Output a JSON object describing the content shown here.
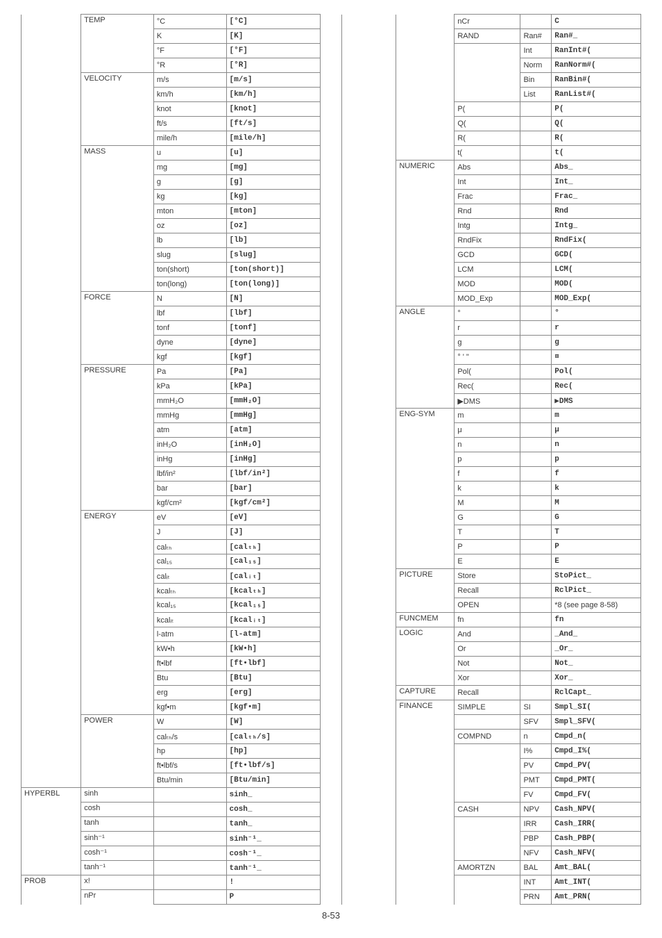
{
  "page_number": "8-53",
  "left_table": {
    "cols": [
      "level1",
      "level2",
      "level3",
      "level4",
      "command"
    ],
    "col_widths": [
      "70px",
      "85px",
      "85px",
      "0px",
      "110px"
    ],
    "rows": [
      {
        "l1": "",
        "l2": "TEMP",
        "l3": "°C",
        "cmd": "[°C]"
      },
      {
        "l1": "",
        "l2": "",
        "l3": "K",
        "cmd": "[K]"
      },
      {
        "l1": "",
        "l2": "",
        "l3": "°F",
        "cmd": "[°F]"
      },
      {
        "l1": "",
        "l2": "",
        "l3": "°R",
        "cmd": "[°R]"
      },
      {
        "l1": "",
        "l2": "VELOCITY",
        "l3": "m/s",
        "cmd": "[m/s]"
      },
      {
        "l1": "",
        "l2": "",
        "l3": "km/h",
        "cmd": "[km/h]"
      },
      {
        "l1": "",
        "l2": "",
        "l3": "knot",
        "cmd": "[knot]"
      },
      {
        "l1": "",
        "l2": "",
        "l3": "ft/s",
        "cmd": "[ft/s]"
      },
      {
        "l1": "",
        "l2": "",
        "l3": "mile/h",
        "cmd": "[mile/h]"
      },
      {
        "l1": "",
        "l2": "MASS",
        "l3": "u",
        "cmd": "[u]"
      },
      {
        "l1": "",
        "l2": "",
        "l3": "mg",
        "cmd": "[mg]"
      },
      {
        "l1": "",
        "l2": "",
        "l3": "g",
        "cmd": "[g]"
      },
      {
        "l1": "",
        "l2": "",
        "l3": "kg",
        "cmd": "[kg]"
      },
      {
        "l1": "",
        "l2": "",
        "l3": "mton",
        "cmd": "[mton]"
      },
      {
        "l1": "",
        "l2": "",
        "l3": "oz",
        "cmd": "[oz]"
      },
      {
        "l1": "",
        "l2": "",
        "l3": "lb",
        "cmd": "[lb]"
      },
      {
        "l1": "",
        "l2": "",
        "l3": "slug",
        "cmd": "[slug]"
      },
      {
        "l1": "",
        "l2": "",
        "l3": "ton(short)",
        "cmd": "[ton(short)]"
      },
      {
        "l1": "",
        "l2": "",
        "l3": "ton(long)",
        "cmd": "[ton(long)]"
      },
      {
        "l1": "",
        "l2": "FORCE",
        "l3": "N",
        "cmd": "[N]"
      },
      {
        "l1": "",
        "l2": "",
        "l3": "lbf",
        "cmd": "[lbf]"
      },
      {
        "l1": "",
        "l2": "",
        "l3": "tonf",
        "cmd": "[tonf]"
      },
      {
        "l1": "",
        "l2": "",
        "l3": "dyne",
        "cmd": "[dyne]"
      },
      {
        "l1": "",
        "l2": "",
        "l3": "kgf",
        "cmd": "[kgf]"
      },
      {
        "l1": "",
        "l2": "PRESSURE",
        "l3": "Pa",
        "cmd": "[Pa]"
      },
      {
        "l1": "",
        "l2": "",
        "l3": "kPa",
        "cmd": "[kPa]"
      },
      {
        "l1": "",
        "l2": "",
        "l3": "mmH₂O",
        "cmd": "[mmH₂O]"
      },
      {
        "l1": "",
        "l2": "",
        "l3": "mmHg",
        "cmd": "[mmHg]"
      },
      {
        "l1": "",
        "l2": "",
        "l3": "atm",
        "cmd": "[atm]"
      },
      {
        "l1": "",
        "l2": "",
        "l3": "inH₂O",
        "cmd": "[inH₂O]"
      },
      {
        "l1": "",
        "l2": "",
        "l3": "inHg",
        "cmd": "[inHg]"
      },
      {
        "l1": "",
        "l2": "",
        "l3": "lbf/in²",
        "cmd": "[lbf/in²]"
      },
      {
        "l1": "",
        "l2": "",
        "l3": "bar",
        "cmd": "[bar]"
      },
      {
        "l1": "",
        "l2": "",
        "l3": "kgf/cm²",
        "cmd": "[kgf/cm²]"
      },
      {
        "l1": "",
        "l2": "ENERGY",
        "l3": "eV",
        "cmd": "[eV]"
      },
      {
        "l1": "",
        "l2": "",
        "l3": "J",
        "cmd": "[J]"
      },
      {
        "l1": "",
        "l2": "",
        "l3": "calₜₕ",
        "cmd": "[calₜₕ]"
      },
      {
        "l1": "",
        "l2": "",
        "l3": "cal₁₅",
        "cmd": "[cal₁₅]"
      },
      {
        "l1": "",
        "l2": "",
        "l3": "calᵢₜ",
        "cmd": "[calᵢₜ]"
      },
      {
        "l1": "",
        "l2": "",
        "l3": "kcalₜₕ",
        "cmd": "[kcalₜₕ]"
      },
      {
        "l1": "",
        "l2": "",
        "l3": "kcal₁₅",
        "cmd": "[kcal₁₅]"
      },
      {
        "l1": "",
        "l2": "",
        "l3": "kcalᵢₜ",
        "cmd": "[kcalᵢₜ]"
      },
      {
        "l1": "",
        "l2": "",
        "l3": "l-atm",
        "cmd": "[l-atm]"
      },
      {
        "l1": "",
        "l2": "",
        "l3": "kW•h",
        "cmd": "[kW•h]"
      },
      {
        "l1": "",
        "l2": "",
        "l3": "ft•lbf",
        "cmd": "[ft•lbf]"
      },
      {
        "l1": "",
        "l2": "",
        "l3": "Btu",
        "cmd": "[Btu]"
      },
      {
        "l1": "",
        "l2": "",
        "l3": "erg",
        "cmd": "[erg]"
      },
      {
        "l1": "",
        "l2": "",
        "l3": "kgf•m",
        "cmd": "[kgf•m]"
      },
      {
        "l1": "",
        "l2": "POWER",
        "l3": "W",
        "cmd": "[W]"
      },
      {
        "l1": "",
        "l2": "",
        "l3": "calₜₕ/s",
        "cmd": "[calₜₕ/s]"
      },
      {
        "l1": "",
        "l2": "",
        "l3": "hp",
        "cmd": "[hp]"
      },
      {
        "l1": "",
        "l2": "",
        "l3": "ft•lbf/s",
        "cmd": "[ft•lbf/s]"
      },
      {
        "l1": "",
        "l2": "",
        "l3": "Btu/min",
        "cmd": "[Btu/min]"
      },
      {
        "l1": "HYPERBL",
        "l2": "sinh",
        "l3": "",
        "cmd": "sinh_"
      },
      {
        "l1": "",
        "l2": "cosh",
        "l3": "",
        "cmd": "cosh_"
      },
      {
        "l1": "",
        "l2": "tanh",
        "l3": "",
        "cmd": "tanh_"
      },
      {
        "l1": "",
        "l2": "sinh⁻¹",
        "l3": "",
        "cmd": "sinh⁻¹_"
      },
      {
        "l1": "",
        "l2": "cosh⁻¹",
        "l3": "",
        "cmd": "cosh⁻¹_"
      },
      {
        "l1": "",
        "l2": "tanh⁻¹",
        "l3": "",
        "cmd": "tanh⁻¹_"
      },
      {
        "l1": "PROB",
        "l2": "x!",
        "l3": "",
        "cmd": "!"
      },
      {
        "l1": "",
        "l2": "nPr",
        "l3": "",
        "cmd": "P"
      }
    ]
  },
  "right_table": {
    "cols": [
      "level1",
      "level2",
      "level3",
      "level4",
      "command"
    ],
    "col_widths": [
      "70px",
      "75px",
      "85px",
      "40px",
      "115px"
    ],
    "rows": [
      {
        "l1": "",
        "l2": "",
        "l3": "nCr",
        "l4": "",
        "cmd": "C"
      },
      {
        "l1": "",
        "l2": "",
        "l3": "RAND",
        "l4": "Ran#",
        "cmd": "Ran#_"
      },
      {
        "l1": "",
        "l2": "",
        "l3": "",
        "l4": "Int",
        "cmd": "RanInt#("
      },
      {
        "l1": "",
        "l2": "",
        "l3": "",
        "l4": "Norm",
        "cmd": "RanNorm#("
      },
      {
        "l1": "",
        "l2": "",
        "l3": "",
        "l4": "Bin",
        "cmd": "RanBin#("
      },
      {
        "l1": "",
        "l2": "",
        "l3": "",
        "l4": "List",
        "cmd": "RanList#("
      },
      {
        "l1": "",
        "l2": "",
        "l3": "P(",
        "l4": "",
        "cmd": "P("
      },
      {
        "l1": "",
        "l2": "",
        "l3": "Q(",
        "l4": "",
        "cmd": "Q("
      },
      {
        "l1": "",
        "l2": "",
        "l3": "R(",
        "l4": "",
        "cmd": "R("
      },
      {
        "l1": "",
        "l2": "",
        "l3": "t(",
        "l4": "",
        "cmd": "t("
      },
      {
        "l1": "",
        "l2": "NUMERIC",
        "l3": "Abs",
        "l4": "",
        "cmd": "Abs_"
      },
      {
        "l1": "",
        "l2": "",
        "l3": "Int",
        "l4": "",
        "cmd": "Int_"
      },
      {
        "l1": "",
        "l2": "",
        "l3": "Frac",
        "l4": "",
        "cmd": "Frac_"
      },
      {
        "l1": "",
        "l2": "",
        "l3": "Rnd",
        "l4": "",
        "cmd": "Rnd"
      },
      {
        "l1": "",
        "l2": "",
        "l3": "Intg",
        "l4": "",
        "cmd": "Intg_"
      },
      {
        "l1": "",
        "l2": "",
        "l3": "RndFix",
        "l4": "",
        "cmd": "RndFix("
      },
      {
        "l1": "",
        "l2": "",
        "l3": "GCD",
        "l4": "",
        "cmd": "GCD("
      },
      {
        "l1": "",
        "l2": "",
        "l3": "LCM",
        "l4": "",
        "cmd": "LCM("
      },
      {
        "l1": "",
        "l2": "",
        "l3": "MOD",
        "l4": "",
        "cmd": "MOD("
      },
      {
        "l1": "",
        "l2": "",
        "l3": "MOD_Exp",
        "l4": "",
        "cmd": "MOD_Exp("
      },
      {
        "l1": "",
        "l2": "ANGLE",
        "l3": "°",
        "l4": "",
        "cmd": "°"
      },
      {
        "l1": "",
        "l2": "",
        "l3": "r",
        "l4": "",
        "cmd": "r"
      },
      {
        "l1": "",
        "l2": "",
        "l3": "g",
        "l4": "",
        "cmd": "g"
      },
      {
        "l1": "",
        "l2": "",
        "l3": "° ' \"",
        "l4": "",
        "cmd": "¤"
      },
      {
        "l1": "",
        "l2": "",
        "l3": "Pol(",
        "l4": "",
        "cmd": "Pol("
      },
      {
        "l1": "",
        "l2": "",
        "l3": "Rec(",
        "l4": "",
        "cmd": "Rec("
      },
      {
        "l1": "",
        "l2": "",
        "l3": "▶DMS",
        "l4": "",
        "cmd": "▶DMS"
      },
      {
        "l1": "",
        "l2": "ENG-SYM",
        "l3": "m",
        "l4": "",
        "cmd": "m"
      },
      {
        "l1": "",
        "l2": "",
        "l3": "μ",
        "l4": "",
        "cmd": "μ"
      },
      {
        "l1": "",
        "l2": "",
        "l3": "n",
        "l4": "",
        "cmd": "n"
      },
      {
        "l1": "",
        "l2": "",
        "l3": "p",
        "l4": "",
        "cmd": "p"
      },
      {
        "l1": "",
        "l2": "",
        "l3": "f",
        "l4": "",
        "cmd": "f"
      },
      {
        "l1": "",
        "l2": "",
        "l3": "k",
        "l4": "",
        "cmd": "k"
      },
      {
        "l1": "",
        "l2": "",
        "l3": "M",
        "l4": "",
        "cmd": "M"
      },
      {
        "l1": "",
        "l2": "",
        "l3": "G",
        "l4": "",
        "cmd": "G"
      },
      {
        "l1": "",
        "l2": "",
        "l3": "T",
        "l4": "",
        "cmd": "T"
      },
      {
        "l1": "",
        "l2": "",
        "l3": "P",
        "l4": "",
        "cmd": "P"
      },
      {
        "l1": "",
        "l2": "",
        "l3": "E",
        "l4": "",
        "cmd": "E"
      },
      {
        "l1": "",
        "l2": "PICTURE",
        "l3": "Store",
        "l4": "",
        "cmd": "StoPict_"
      },
      {
        "l1": "",
        "l2": "",
        "l3": "Recall",
        "l4": "",
        "cmd": "RclPict_"
      },
      {
        "l1": "",
        "l2": "",
        "l3": "OPEN",
        "l4": "",
        "cmd": "*8 (see page 8-58)",
        "cmd_plain": true
      },
      {
        "l1": "",
        "l2": "FUNCMEM",
        "l3": "fn",
        "l4": "",
        "cmd": "fn"
      },
      {
        "l1": "",
        "l2": "LOGIC",
        "l3": "And",
        "l4": "",
        "cmd": "_And_"
      },
      {
        "l1": "",
        "l2": "",
        "l3": "Or",
        "l4": "",
        "cmd": "_Or_"
      },
      {
        "l1": "",
        "l2": "",
        "l3": "Not",
        "l4": "",
        "cmd": "Not_"
      },
      {
        "l1": "",
        "l2": "",
        "l3": "Xor",
        "l4": "",
        "cmd": "Xor_"
      },
      {
        "l1": "",
        "l2": "CAPTURE",
        "l3": "Recall",
        "l4": "",
        "cmd": "RclCapt_"
      },
      {
        "l1": "",
        "l2": "FINANCE",
        "l3": "SIMPLE",
        "l4": "SI",
        "cmd": "Smpl_SI("
      },
      {
        "l1": "",
        "l2": "",
        "l3": "",
        "l4": "SFV",
        "cmd": "Smpl_SFV("
      },
      {
        "l1": "",
        "l2": "",
        "l3": "COMPND",
        "l4": "n",
        "cmd": "Cmpd_n("
      },
      {
        "l1": "",
        "l2": "",
        "l3": "",
        "l4": "I%",
        "cmd": "Cmpd_I%("
      },
      {
        "l1": "",
        "l2": "",
        "l3": "",
        "l4": "PV",
        "cmd": "Cmpd_PV("
      },
      {
        "l1": "",
        "l2": "",
        "l3": "",
        "l4": "PMT",
        "cmd": "Cmpd_PMT("
      },
      {
        "l1": "",
        "l2": "",
        "l3": "",
        "l4": "FV",
        "cmd": "Cmpd_FV("
      },
      {
        "l1": "",
        "l2": "",
        "l3": "CASH",
        "l4": "NPV",
        "cmd": "Cash_NPV("
      },
      {
        "l1": "",
        "l2": "",
        "l3": "",
        "l4": "IRR",
        "cmd": "Cash_IRR("
      },
      {
        "l1": "",
        "l2": "",
        "l3": "",
        "l4": "PBP",
        "cmd": "Cash_PBP("
      },
      {
        "l1": "",
        "l2": "",
        "l3": "",
        "l4": "NFV",
        "cmd": "Cash_NFV("
      },
      {
        "l1": "",
        "l2": "",
        "l3": "AMORTZN",
        "l4": "BAL",
        "cmd": "Amt_BAL("
      },
      {
        "l1": "",
        "l2": "",
        "l3": "",
        "l4": "INT",
        "cmd": "Amt_INT("
      },
      {
        "l1": "",
        "l2": "",
        "l3": "",
        "l4": "PRN",
        "cmd": "Amt_PRN("
      }
    ]
  }
}
